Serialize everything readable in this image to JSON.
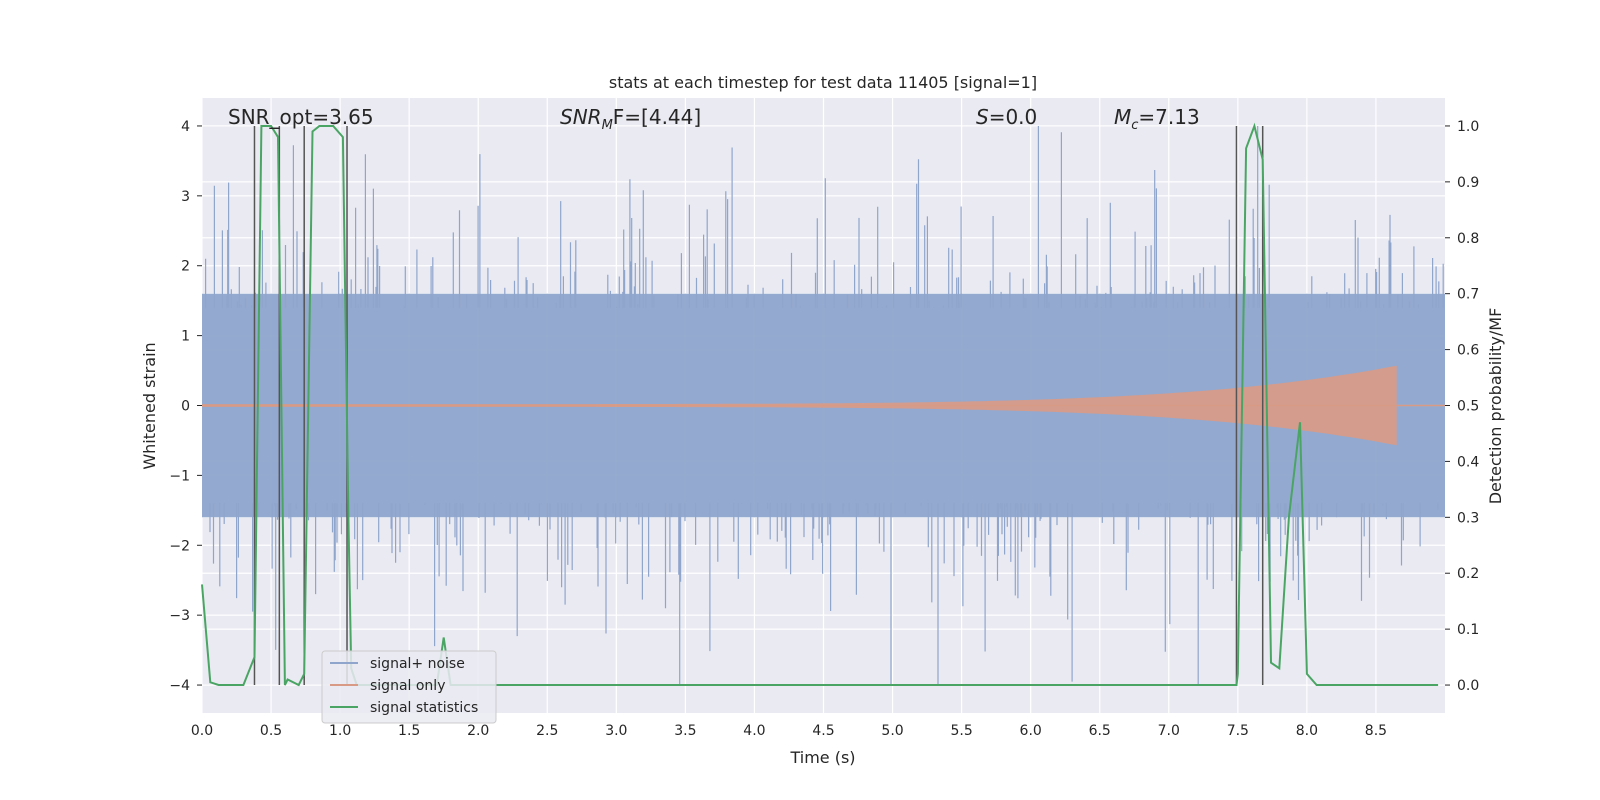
{
  "chart_data": {
    "type": "line",
    "title": "stats at each timestep for test data 11405 [signal=1]",
    "xlabel": "Time (s)",
    "ylabel": "Whitened strain",
    "ylabel_right": "Detection probability/MF",
    "xlim": [
      0,
      9.0
    ],
    "ylim": [
      -4.4,
      4.4
    ],
    "ylim_right": [
      -0.05,
      1.05
    ],
    "x_ticks": [
      "0.0",
      "0.5",
      "1.0",
      "1.5",
      "2.0",
      "2.5",
      "3.0",
      "3.5",
      "4.0",
      "4.5",
      "5.0",
      "5.5",
      "6.0",
      "6.5",
      "7.0",
      "7.5",
      "8.0",
      "8.5"
    ],
    "y_ticks": [
      "4",
      "3",
      "2",
      "1",
      "0",
      "−1",
      "−2",
      "−3",
      "−4"
    ],
    "y_ticks_right": [
      "1.0",
      "0.9",
      "0.8",
      "0.7",
      "0.6",
      "0.5",
      "0.4",
      "0.3",
      "0.2",
      "0.1",
      "0.0"
    ],
    "grid": true,
    "legend_position": "lower-left",
    "annotations": [
      {
        "text": "SNR_opt=3.65",
        "x": 0.2
      },
      {
        "text_main": "SNR",
        "text_sub": "M",
        "text_rest": "F=[4.44]",
        "x": 2.6
      },
      {
        "text_main": "S",
        "text_rest": "=0.0",
        "x": 5.6
      },
      {
        "text_main": "M",
        "text_sub": "c",
        "text_rest": "=7.13",
        "x": 6.6
      }
    ],
    "series": [
      {
        "name": "signal+ noise",
        "color": "#8fa5cc",
        "kind": "noise",
        "x_range": [
          0,
          9.0
        ],
        "amplitude_std": 1.3
      },
      {
        "name": "signal only",
        "color": "#d99a85",
        "kind": "chirp",
        "x_range": [
          0,
          8.65
        ],
        "peak_amplitude": 0.55
      },
      {
        "name": "signal statistics",
        "color": "#4aa564",
        "kind": "line",
        "axis": "right",
        "x": [
          0,
          0.06,
          0.12,
          0.3,
          0.38,
          0.43,
          0.5,
          0.55,
          0.6,
          0.62,
          0.7,
          0.74,
          0.8,
          0.85,
          0.95,
          1.02,
          1.06,
          1.08,
          1.12,
          1.2,
          1.5,
          1.7,
          1.75,
          1.8,
          2.0,
          3.0,
          4.0,
          5.0,
          6.0,
          7.0,
          7.49,
          7.5,
          7.56,
          7.62,
          7.68,
          7.74,
          7.8,
          7.87,
          7.95,
          8.0,
          8.07,
          8.5,
          8.95
        ],
        "y": [
          0.18,
          0.005,
          0.0,
          0.0,
          0.05,
          1.0,
          1.0,
          0.98,
          0.0,
          0.01,
          0.0,
          0.02,
          0.99,
          1.0,
          1.0,
          0.98,
          0.3,
          0.03,
          0.0,
          0.0,
          0.0,
          0.0,
          0.085,
          0.0,
          0.0,
          0.0,
          0.0,
          0.0,
          0.0,
          0.0,
          0.0,
          0.02,
          0.96,
          1.0,
          0.94,
          0.04,
          0.03,
          0.3,
          0.47,
          0.02,
          0.0,
          0.0,
          0.0
        ]
      }
    ],
    "vlines": [
      {
        "x": 0.38,
        "color": "#555555"
      },
      {
        "x": 0.56,
        "color": "#555555"
      },
      {
        "x": 0.74,
        "color": "#555555"
      },
      {
        "x": 1.05,
        "color": "#555555"
      },
      {
        "x": 7.49,
        "color": "#555555"
      },
      {
        "x": 7.68,
        "color": "#555555"
      }
    ]
  }
}
